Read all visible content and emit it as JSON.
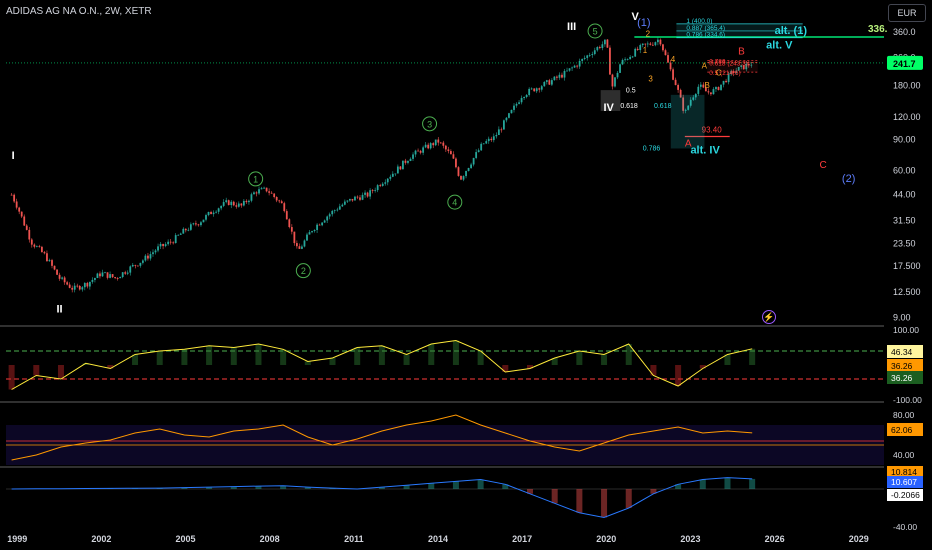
{
  "header": {
    "title": "ADIDAS AG NA O.N., 2W, XETR",
    "currency": "EUR"
  },
  "colors": {
    "background": "#000000",
    "candle_up": "#26a69a",
    "candle_down": "#ef5350",
    "wave_green": "#4caf50",
    "fib_cyan": "#2bd8e0",
    "fib_red": "#ff3b3b",
    "ma_line": "#ffeb3b",
    "alt_green": "#00e676",
    "price_badge": "#00ff66"
  },
  "chart_data": [
    {
      "type": "line",
      "name": "price",
      "xaxis": {
        "ticks": [
          "1999",
          "2002",
          "2005",
          "2008",
          "2011",
          "2014",
          "2017",
          "2020",
          "2023",
          "2026",
          "2029"
        ],
        "range": [
          1998.6,
          2029.9
        ]
      },
      "yaxis": {
        "scale": "log",
        "ticks": [
          "360.0",
          "260.0",
          "180.00",
          "120.00",
          "90.00",
          "60.00",
          "44.00",
          "31.50",
          "23.50",
          "17.500",
          "12.500",
          "9.00"
        ],
        "range": [
          8.5,
          410
        ]
      },
      "x": [
        1998.8,
        1999.0,
        1999.5,
        2000.0,
        2000.5,
        2001.0,
        2001.5,
        2002.0,
        2002.5,
        2003.0,
        2003.5,
        2004.0,
        2004.5,
        2005.0,
        2005.5,
        2006.0,
        2006.5,
        2007.0,
        2007.5,
        2007.9,
        2008.5,
        2009.0,
        2009.5,
        2010.0,
        2010.5,
        2011.0,
        2011.5,
        2012.0,
        2012.5,
        2013.0,
        2013.5,
        2014.0,
        2014.5,
        2014.8,
        2015.2,
        2015.6,
        2016.0,
        2016.5,
        2017.0,
        2017.5,
        2018.0,
        2018.5,
        2019.0,
        2019.5,
        2020.0,
        2020.2,
        2020.5,
        2020.9,
        2021.3,
        2021.6,
        2021.9,
        2022.2,
        2022.5,
        2022.8,
        2023.0,
        2023.3,
        2023.6,
        2023.9,
        2024.2,
        2024.5,
        2024.9,
        2025.2
      ],
      "y": [
        44,
        38,
        24,
        20,
        15,
        13,
        14,
        16,
        15,
        17,
        19,
        22,
        24,
        28,
        31,
        36,
        40,
        38,
        46,
        47,
        38,
        21,
        28,
        33,
        38,
        42,
        44,
        52,
        60,
        72,
        80,
        88,
        72,
        54,
        68,
        85,
        92,
        120,
        160,
        175,
        190,
        210,
        240,
        280,
        320,
        175,
        240,
        270,
        300,
        310,
        330,
        240,
        180,
        125,
        150,
        180,
        165,
        170,
        190,
        215,
        230,
        241.7
      ],
      "labels": {
        "last_price": "241.7",
        "target_label": "336.",
        "level_value": "93.40"
      },
      "fib_levels_upper": [
        {
          "label": "1 (400.0)",
          "value": 400.0
        },
        {
          "label": "0.887 (365.4)",
          "value": 365.4
        },
        {
          "label": "0.786 (334.6)",
          "value": 334.6
        }
      ],
      "fib_levels_lower": [
        {
          "label": "0.786",
          "value": 250
        },
        {
          "label": "0.618 (243.3)",
          "value": 243.3
        },
        {
          "label": "0.5 (214.6)",
          "value": 214.6
        }
      ],
      "fib_side_labels": [
        "0.5",
        "0.618",
        "0.618",
        "0.786"
      ],
      "wave_labels": {
        "primary": [
          "I",
          "II",
          "III",
          "IV",
          "V"
        ],
        "circled": [
          "1",
          "2",
          "3",
          "4",
          "5"
        ],
        "minor": [
          "1",
          "2",
          "3",
          "4",
          "A",
          "B",
          "C"
        ],
        "corrective": [
          "A",
          "B",
          "C"
        ],
        "alt": [
          "alt. (1)",
          "alt. V",
          "alt. IV"
        ],
        "degree": [
          "(1)",
          "(2)"
        ]
      }
    },
    {
      "type": "line",
      "name": "indicator-1",
      "ylim": [
        -100,
        100
      ],
      "ticks": [
        "100.00",
        "-100.00"
      ],
      "values": [
        -70,
        -30,
        -40,
        5,
        -10,
        30,
        40,
        45,
        55,
        50,
        60,
        45,
        10,
        20,
        50,
        55,
        30,
        60,
        70,
        40,
        -20,
        -10,
        20,
        40,
        30,
        60,
        -30,
        -60,
        -10,
        30,
        46.34
      ],
      "labels": {
        "value_a": "46.34",
        "value_b": "36.26",
        "value_c": "36.26"
      }
    },
    {
      "type": "line",
      "name": "indicator-2",
      "ylim": [
        30,
        90
      ],
      "ticks": [
        "80.00",
        "40.00"
      ],
      "values": [
        35,
        40,
        48,
        52,
        55,
        62,
        66,
        60,
        58,
        64,
        66,
        70,
        58,
        50,
        56,
        64,
        70,
        74,
        80,
        70,
        62,
        54,
        48,
        44,
        52,
        60,
        64,
        68,
        62,
        64,
        62.06
      ],
      "labels": {
        "value": "62.06"
      }
    },
    {
      "type": "line",
      "name": "indicator-3",
      "ylim": [
        -40,
        20
      ],
      "ticks": [
        "-40.00"
      ],
      "values": [
        0,
        0.2,
        0.3,
        0.5,
        0.6,
        0.8,
        1,
        1.5,
        2,
        2.5,
        3,
        3.5,
        2,
        1,
        0,
        2,
        4,
        6,
        8,
        10,
        5,
        -5,
        -15,
        -25,
        -30,
        -20,
        -5,
        5,
        10,
        12,
        10.607
      ],
      "labels": {
        "value_top": "10.814",
        "value_a": "10.607",
        "value_b": "-0.2066"
      }
    }
  ]
}
